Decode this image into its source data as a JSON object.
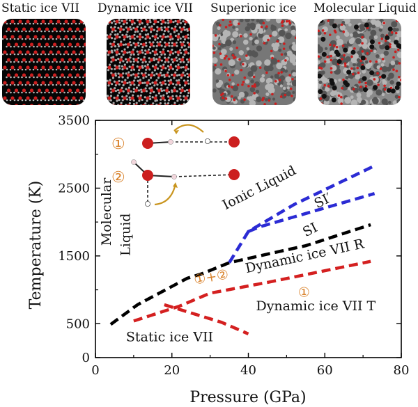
{
  "panels": [
    {
      "label": "Static ice VII",
      "style": "static"
    },
    {
      "label": "Dynamic ice VII",
      "style": "dynamic"
    },
    {
      "label": "Superionic ice",
      "style": "superionic"
    },
    {
      "label": "Molecular Liquid",
      "style": "liquid"
    }
  ],
  "colors": {
    "black_line": "#000000",
    "blue_line": "#2b2bd4",
    "red_line": "#d42020",
    "annotation_orange": "#d9822b",
    "oxygen_red": "#cc1f1f",
    "hydrogen_pink": "#f2d6dc",
    "arrow_gold": "#c9951f"
  },
  "chart_data": {
    "type": "line",
    "xlabel": "Pressure (GPa)",
    "ylabel": "Temperature (K)",
    "xlim": [
      0,
      80
    ],
    "ylim": [
      0,
      3500
    ],
    "xticks": [
      0,
      20,
      40,
      60,
      80
    ],
    "yticks": [
      0,
      500,
      1500,
      2500,
      3500
    ],
    "grid": false,
    "series": [
      {
        "color": "#000000",
        "points": [
          [
            4,
            490
          ],
          [
            11,
            780
          ],
          [
            24,
            1170
          ],
          [
            28,
            1240
          ],
          [
            35,
            1400
          ],
          [
            46,
            1540
          ],
          [
            55,
            1650
          ],
          [
            72,
            1960
          ]
        ]
      },
      {
        "color": "#2b2bd4",
        "points": [
          [
            35,
            1400
          ],
          [
            40,
            1860
          ],
          [
            52,
            2260
          ],
          [
            73,
            2830
          ]
        ]
      },
      {
        "color": "#2b2bd4",
        "points": [
          [
            40,
            1860
          ],
          [
            43,
            1930
          ],
          [
            73,
            2420
          ]
        ]
      },
      {
        "color": "#d42020",
        "points": [
          [
            10,
            540
          ],
          [
            22,
            760
          ],
          [
            30,
            950
          ],
          [
            45,
            1110
          ],
          [
            72,
            1420
          ]
        ]
      },
      {
        "color": "#d42020",
        "points": [
          [
            18,
            780
          ],
          [
            33,
            520
          ],
          [
            40,
            350
          ]
        ]
      }
    ],
    "annotations": [
      {
        "text": "Ionic Liquid",
        "x": 34,
        "y": 2180,
        "rotate": -27,
        "color": "#111111"
      },
      {
        "text": "SI′",
        "x": 58,
        "y": 2200,
        "rotate": -27,
        "color": "#111111"
      },
      {
        "text": "SI",
        "x": 55,
        "y": 1780,
        "rotate": -27,
        "color": "#111111"
      },
      {
        "text": "Molecular",
        "x": 4,
        "y": 1650,
        "rotate": -90,
        "color": "#111111"
      },
      {
        "text": "Liquid",
        "x": 9,
        "y": 1500,
        "rotate": -90,
        "color": "#111111"
      },
      {
        "text": "Dynamic ice VII R",
        "x": 39.5,
        "y": 1250,
        "rotate": -12,
        "color": "#111111"
      },
      {
        "text": "Dynamic ice VII T",
        "x": 42,
        "y": 700,
        "rotate": 0,
        "color": "#111111"
      },
      {
        "text": "Static ice VII",
        "x": 8,
        "y": 240,
        "rotate": 0,
        "color": "#111111"
      },
      {
        "text": "①+②",
        "x": 26,
        "y": 1080,
        "rotate": -10,
        "color": "#d9822b"
      },
      {
        "text": "①",
        "x": 53,
        "y": 900,
        "rotate": 0,
        "color": "#d9822b"
      }
    ],
    "inset": {
      "labels": [
        "①",
        "②"
      ]
    }
  }
}
